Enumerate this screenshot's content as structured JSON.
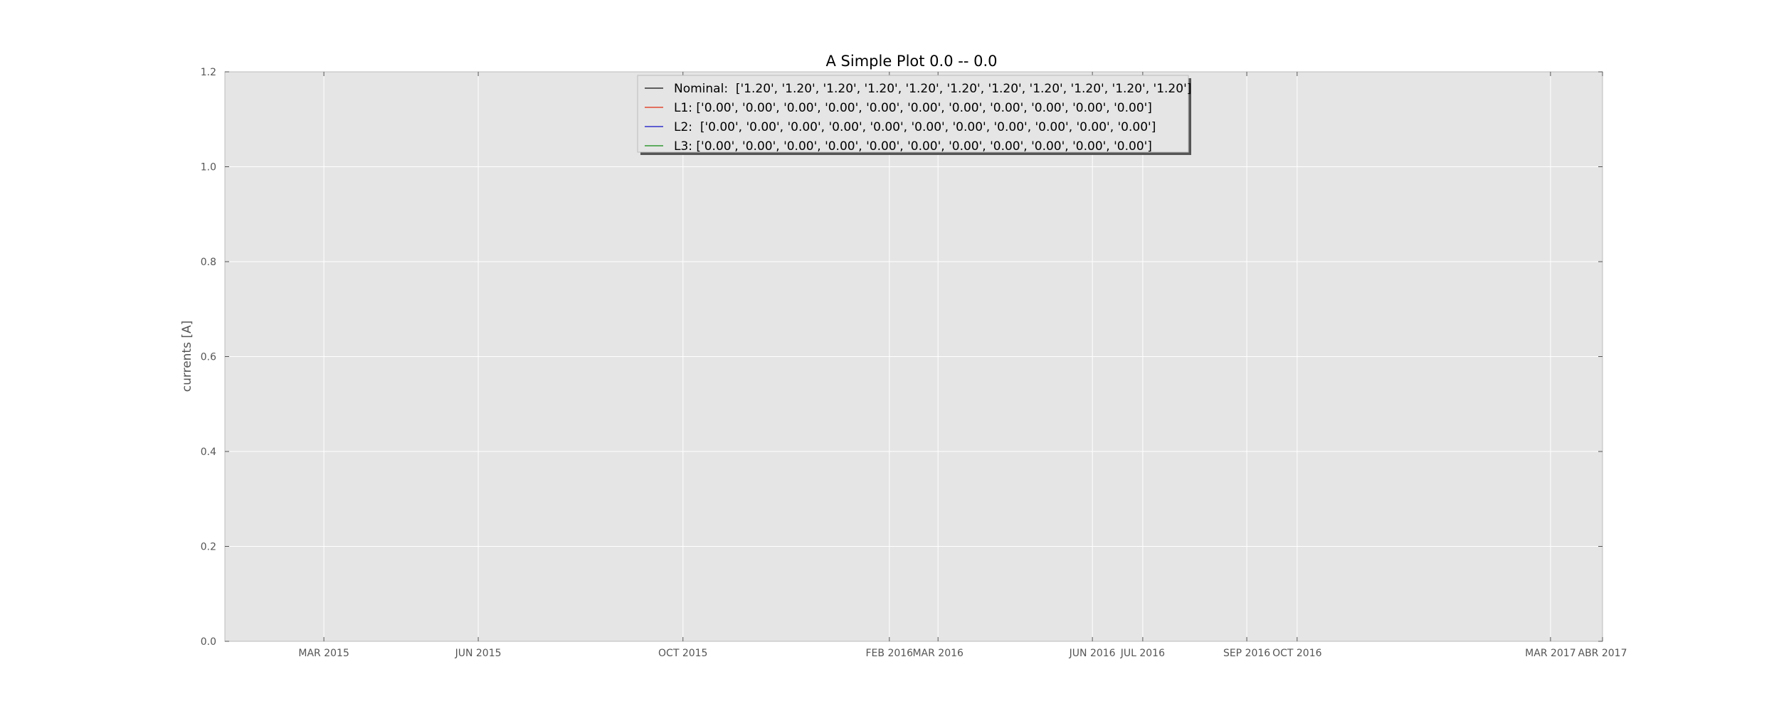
{
  "chart_data": {
    "type": "line",
    "title": "A Simple Plot 0.0 -- 0.0",
    "xlabel": "",
    "ylabel": "currents [A]",
    "xlim": [
      "2015-01-01",
      "2017-04-01"
    ],
    "ylim": [
      0,
      1.2
    ],
    "yticks": [
      0.0,
      0.2,
      0.4,
      0.6,
      0.8,
      1.0,
      1.2
    ],
    "ytick_labels": [
      "0.0",
      "0.2",
      "0.4",
      "0.6",
      "0.8",
      "1.0",
      "1.2"
    ],
    "xticks": [
      {
        "date": "2015-03-01",
        "label": "MAR 2015"
      },
      {
        "date": "2015-06-01",
        "label": "JUN 2015"
      },
      {
        "date": "2015-10-01",
        "label": "OCT 2015"
      },
      {
        "date": "2016-02-01",
        "label": "FEB 2016"
      },
      {
        "date": "2016-03-01",
        "label": "MAR 2016"
      },
      {
        "date": "2016-06-01",
        "label": "JUN 2016"
      },
      {
        "date": "2016-07-01",
        "label": "JUL 2016"
      },
      {
        "date": "2016-09-01",
        "label": "SEP 2016"
      },
      {
        "date": "2016-10-01",
        "label": "OCT 2016"
      },
      {
        "date": "2017-03-01",
        "label": "MAR 2017"
      },
      {
        "date": "2017-04-01",
        "label": "ABR 2017"
      }
    ],
    "grid": true,
    "legend_position": "top-center",
    "background_color": "#e5e5e5",
    "series": [
      {
        "label": "Nominal:  ['1.20', '1.20', '1.20', '1.20', '1.20', '1.20', '1.20', '1.20', '1.20', '1.20', '1.20']",
        "color": "#333333"
      },
      {
        "label": "L1: ['0.00', '0.00', '0.00', '0.00', '0.00', '0.00', '0.00', '0.00', '0.00', '0.00', '0.00']",
        "color": "#e24a33"
      },
      {
        "label": "L2:  ['0.00', '0.00', '0.00', '0.00', '0.00', '0.00', '0.00', '0.00', '0.00', '0.00', '0.00']",
        "color": "#3333cc"
      },
      {
        "label": "L3: ['0.00', '0.00', '0.00', '0.00', '0.00', '0.00', '0.00', '0.00', '0.00', '0.00', '0.00']",
        "color": "#339933"
      }
    ]
  }
}
